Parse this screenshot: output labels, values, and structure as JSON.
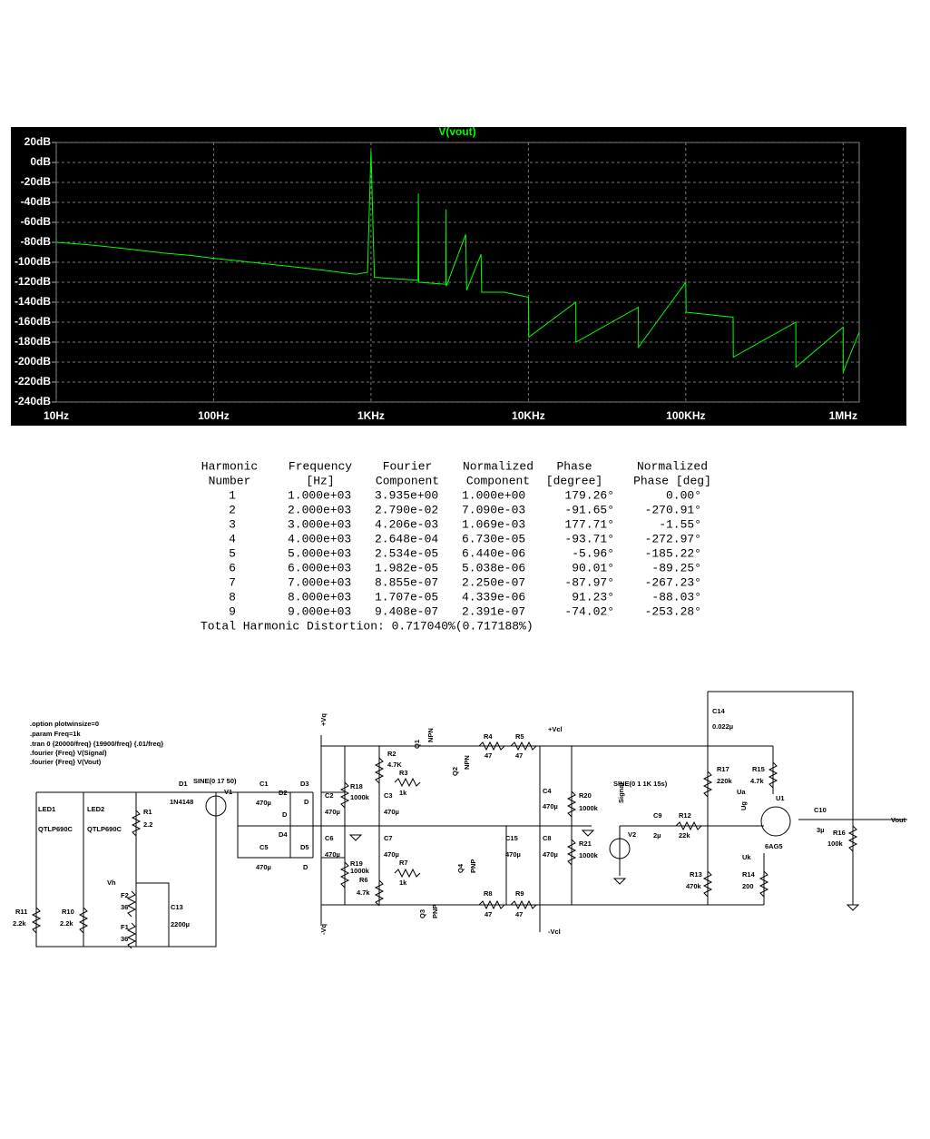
{
  "chart_data": {
    "type": "line",
    "title": "V(vout)",
    "color": "#00ff00",
    "log_x": true,
    "grid": true,
    "xlim": [
      10,
      1265000
    ],
    "ylim": [
      -240,
      20
    ],
    "xticks": [
      {
        "value": 10,
        "label": "10Hz"
      },
      {
        "value": 100,
        "label": "100Hz"
      },
      {
        "value": 1000,
        "label": "1KHz"
      },
      {
        "value": 10000,
        "label": "10KHz"
      },
      {
        "value": 100000,
        "label": "100KHz"
      },
      {
        "value": 1000000,
        "label": "1MHz"
      }
    ],
    "yticks": [
      {
        "value": 20,
        "label": "20dB"
      },
      {
        "value": 0,
        "label": "0dB"
      },
      {
        "value": -20,
        "label": "-20dB"
      },
      {
        "value": -40,
        "label": "-40dB"
      },
      {
        "value": -60,
        "label": "-60dB"
      },
      {
        "value": -80,
        "label": "-80dB"
      },
      {
        "value": -100,
        "label": "-100dB"
      },
      {
        "value": -120,
        "label": "-120dB"
      },
      {
        "value": -140,
        "label": "-140dB"
      },
      {
        "value": -160,
        "label": "-160dB"
      },
      {
        "value": -180,
        "label": "-180dB"
      },
      {
        "value": -200,
        "label": "-200dB"
      },
      {
        "value": -220,
        "label": "-220dB"
      },
      {
        "value": -240,
        "label": "-240dB"
      }
    ],
    "x": [
      10,
      15,
      20,
      30,
      50,
      70,
      100,
      200,
      300,
      500,
      800,
      950,
      1000,
      1050,
      1300,
      1990,
      2000,
      2010,
      2990,
      3000,
      3010,
      4000,
      4050,
      5000,
      5050,
      7000,
      10000,
      10050,
      20000,
      20050,
      50000,
      50050,
      100000,
      100500,
      200000,
      200500,
      500000,
      500500,
      1000000,
      1000500,
      1265000
    ],
    "values": [
      -80,
      -82,
      -84,
      -87,
      -91,
      -93,
      -96,
      -101,
      -104,
      -108,
      -112,
      -110,
      12,
      -115,
      -116,
      -118,
      -31,
      -120,
      -122,
      -47,
      -124,
      -72,
      -128,
      -92,
      -130,
      -130,
      -135,
      -175,
      -140,
      -180,
      -145,
      -185,
      -120,
      -150,
      -155,
      -195,
      -160,
      -205,
      -165,
      -210,
      -170
    ]
  },
  "table": {
    "header": [
      [
        "Harmonic",
        "Frequency",
        "Fourier",
        "Normalized",
        "Phase",
        "Normalized"
      ],
      [
        "Number",
        "[Hz]",
        "Component",
        "Component",
        "[degree]",
        "Phase [deg]"
      ]
    ],
    "rows": [
      [
        "1",
        "1.000e+03",
        "3.935e+00",
        "1.000e+00",
        "179.26°",
        "0.00°"
      ],
      [
        "2",
        "2.000e+03",
        "2.790e-02",
        "7.090e-03",
        "-91.65°",
        "-270.91°"
      ],
      [
        "3",
        "3.000e+03",
        "4.206e-03",
        "1.069e-03",
        "177.71°",
        "-1.55°"
      ],
      [
        "4",
        "4.000e+03",
        "2.648e-04",
        "6.730e-05",
        "-93.71°",
        "-272.97°"
      ],
      [
        "5",
        "5.000e+03",
        "2.534e-05",
        "6.440e-06",
        "-5.96°",
        "-185.22°"
      ],
      [
        "6",
        "6.000e+03",
        "1.982e-05",
        "5.038e-06",
        "90.01°",
        "-89.25°"
      ],
      [
        "7",
        "7.000e+03",
        "8.855e-07",
        "2.250e-07",
        "-87.97°",
        "-267.23°"
      ],
      [
        "8",
        "8.000e+03",
        "1.707e-05",
        "4.339e-06",
        "91.23°",
        "-88.03°"
      ],
      [
        "9",
        "9.000e+03",
        "9.408e-07",
        "2.391e-07",
        "-74.02°",
        "-253.28°"
      ]
    ],
    "total": "Total Harmonic Distortion: 0.717040%(0.717188%)"
  },
  "schematic": {
    "labels": [
      ".option plotwinsize=0",
      ".param Freq=1k",
      ".tran 0 {20000/freq} {19900/freq} {.01/freq}",
      ".fourier {Freq} V(Signal)",
      ".fourier {Freq} V(Vout)",
      "LED1",
      "QTLP690C",
      "LED2",
      "QTLP690C",
      "R11",
      "2.2k",
      "R10",
      "2.2k",
      "R1",
      "2.2",
      "Vh",
      "F2",
      "36",
      "F1",
      "36",
      "C13",
      "2200µ",
      "D1",
      "1N4148",
      "SINE(0 17 50)",
      "V1",
      "C1",
      "470µ",
      "D2",
      "D3",
      "D",
      "D",
      "C2",
      "470µ",
      "R18",
      "1000k",
      "D4",
      "D5",
      "C5",
      "470µ",
      "D",
      "C6",
      "470µ",
      "C3",
      "470µ",
      "R2",
      "4.7K",
      "R3",
      "1k",
      "Q1",
      "NPN",
      "Q2",
      "NPN",
      "R4",
      "47",
      "R5",
      "47",
      "+Vcl",
      "+Vq",
      "C4",
      "470µ",
      "R20",
      "1000k",
      "SINE(0 1 1K 15s)",
      "Signal",
      "V2",
      "C9",
      "2µ",
      "R12",
      "22k",
      "C7",
      "470µ",
      "R19",
      "1000k",
      "R6",
      "4.7k",
      "R7",
      "1k",
      "Q4",
      "PNP",
      "Q3",
      "PNP",
      "R8",
      "47",
      "R9",
      "47",
      "-Vcl",
      "-Vq",
      "C15",
      "470µ",
      "C8",
      "470µ",
      "R21",
      "1000k",
      "C14",
      "0.022µ",
      "R17",
      "220k",
      "Ua",
      "R15",
      "4.7k",
      "U1",
      "Ug",
      "Uk",
      "6AG5",
      "R13",
      "470k",
      "R14",
      "200",
      "C10",
      "3µ",
      "R16",
      "100k",
      "Vout"
    ]
  }
}
